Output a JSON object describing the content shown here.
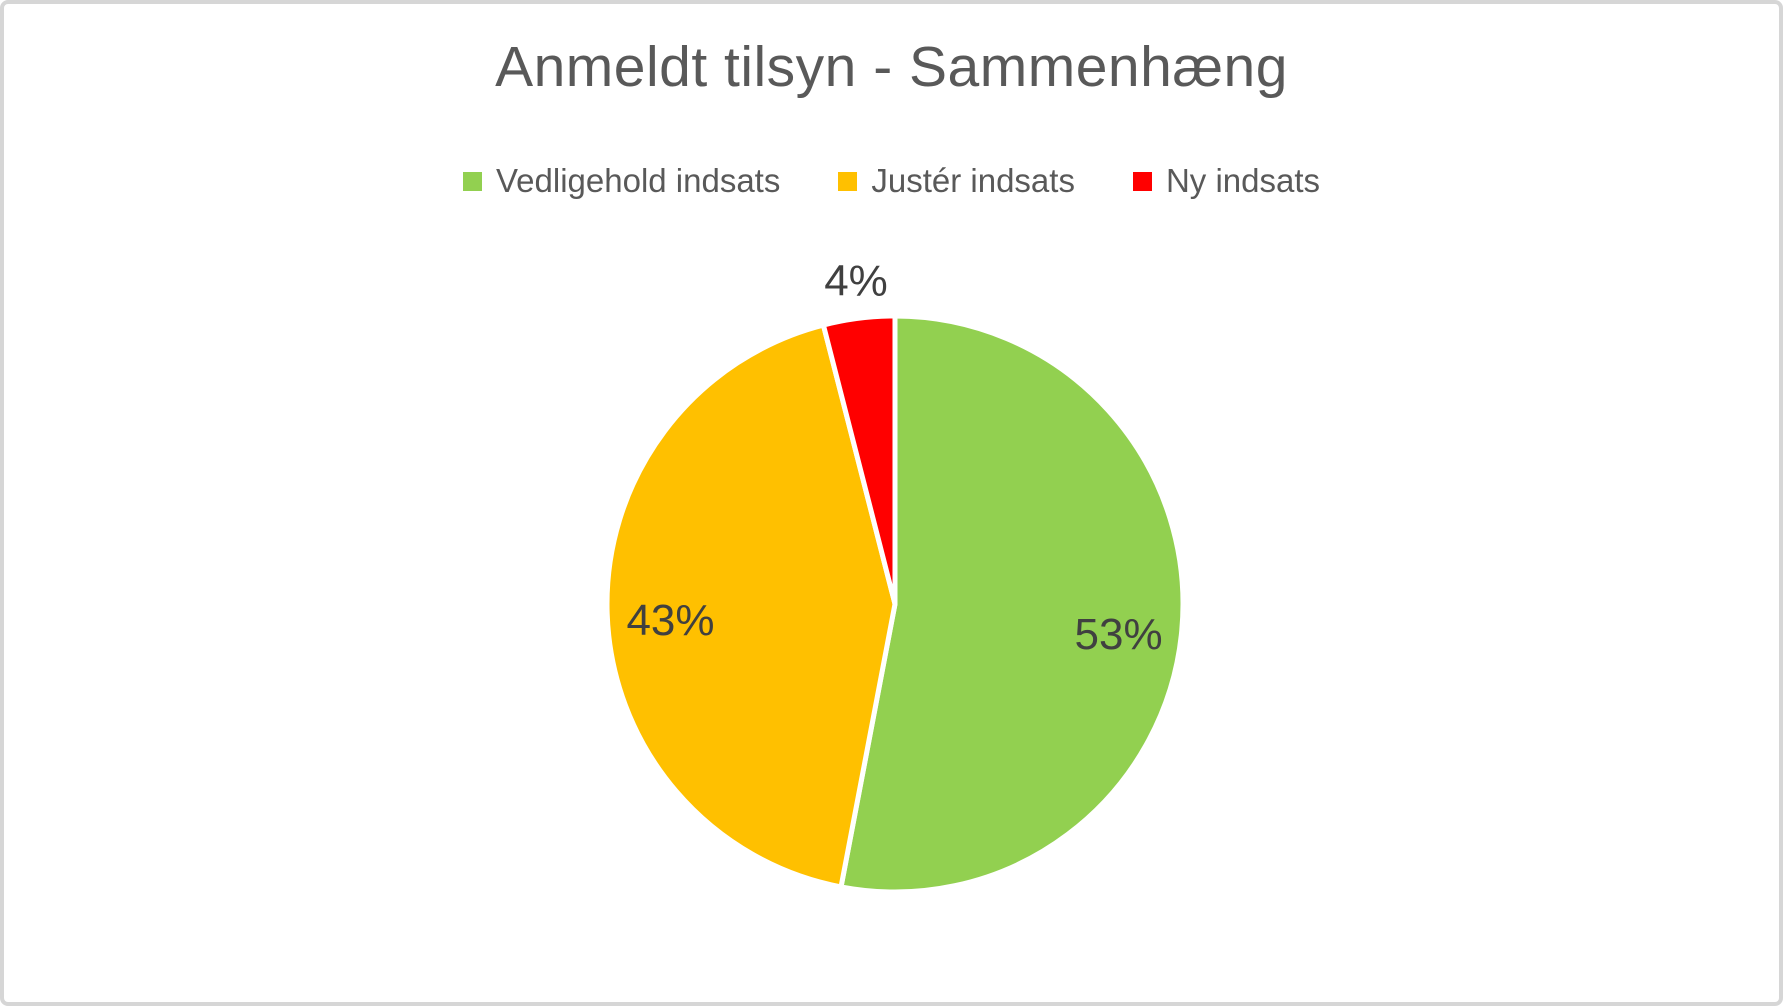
{
  "page": {
    "background": "#ffffff",
    "border_color": "#d6d6d6"
  },
  "title": {
    "text": "Anmeldt tilsyn - Sammenhæng",
    "color": "#595959"
  },
  "legend": {
    "position": "top-center",
    "items": [
      {
        "label": "Vedligehold indsats",
        "color": "#92D050",
        "swatch": "green-square-icon"
      },
      {
        "label": "Justér indsats",
        "color": "#FFC000",
        "swatch": "yellow-square-icon"
      },
      {
        "label": "Ny indsats",
        "color": "#FF0000",
        "swatch": "red-square-icon"
      }
    ]
  },
  "chart_data": {
    "type": "pie",
    "title": "Anmeldt tilsyn - Sammenhæng",
    "categories": [
      "Vedligehold indsats",
      "Justér indsats",
      "Ny indsats"
    ],
    "values": [
      53,
      43,
      4
    ],
    "unit": "%",
    "data_labels": [
      "53%",
      "43%",
      "4%"
    ],
    "colors": [
      "#92D050",
      "#FFC000",
      "#FF0000"
    ],
    "start_angle_deg": 0,
    "direction": "clockwise",
    "legend_position": "top",
    "grid": false,
    "label_text_color": "#404040",
    "small_slice_outside_label_threshold_pct": 10
  }
}
